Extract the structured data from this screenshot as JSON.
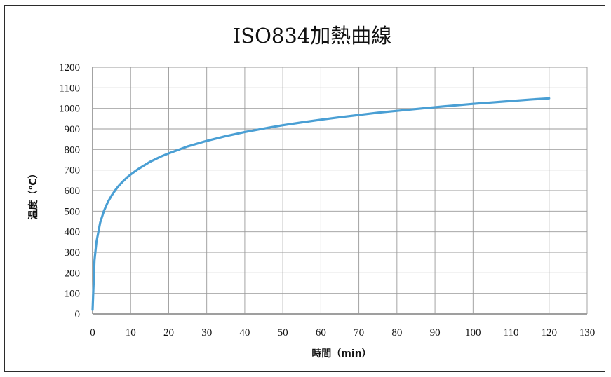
{
  "chart_data": {
    "type": "line",
    "title": "ISO834加熱曲線",
    "xlabel": "時間（min）",
    "ylabel": "温度（℃）",
    "xlim": [
      0,
      130
    ],
    "ylim": [
      0,
      1200
    ],
    "xticks": [
      0,
      10,
      20,
      30,
      40,
      50,
      60,
      70,
      80,
      90,
      100,
      110,
      120,
      130
    ],
    "yticks": [
      0,
      100,
      200,
      300,
      400,
      500,
      600,
      700,
      800,
      900,
      1000,
      1100,
      1200
    ],
    "grid": true,
    "legend": "none",
    "series": [
      {
        "color": "#4a9fd4",
        "x": [
          0,
          0.5,
          1,
          2,
          3,
          4,
          5,
          6,
          7,
          8,
          9,
          10,
          12,
          15,
          18,
          20,
          25,
          30,
          35,
          40,
          45,
          50,
          55,
          60,
          65,
          70,
          75,
          80,
          85,
          90,
          95,
          100,
          105,
          110,
          115,
          120
        ],
        "y": [
          20,
          261,
          349,
          445,
          502,
          544,
          576,
          603,
          626,
          645,
          663,
          678,
          705,
          739,
          766,
          781,
          815,
          842,
          865,
          885,
          902,
          918,
          932,
          945,
          957,
          968,
          979,
          988,
          997,
          1006,
          1014,
          1022,
          1029,
          1036,
          1043,
          1049
        ]
      }
    ]
  }
}
